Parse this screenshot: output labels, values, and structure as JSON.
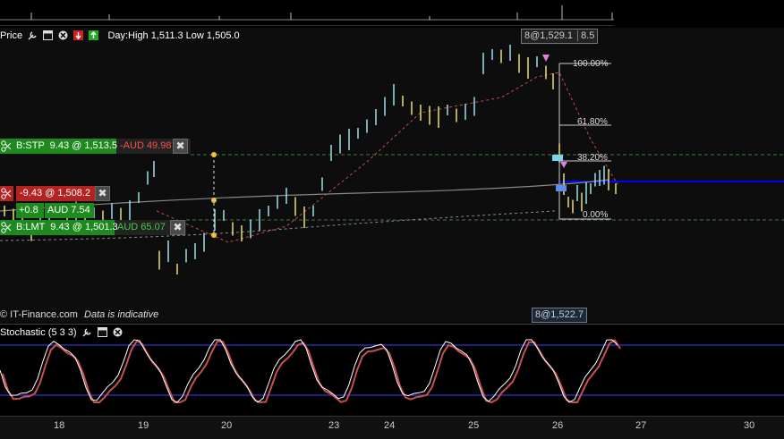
{
  "main": {
    "price_label": "Price",
    "day_info": "Day:High 1,511.3 Low 1,505.0",
    "watermark": "© IT-Finance.com",
    "indicative": "Data is indicative",
    "top_tag": "8@1,529.1",
    "top_tag_value": "8.5",
    "bottom_tag": "8@1,522.7"
  },
  "orders": {
    "stop": {
      "label": "B:STP",
      "qty_price": "9.43 @ 1,513.5",
      "pl": "-AUD 49.98"
    },
    "position": {
      "qty_price": "-9.43 @ 1,508.2",
      "points": "+0.8",
      "aud": "AUD 7.54"
    },
    "limit": {
      "label": "B:LMT",
      "qty_price": "9.43 @ 1,501.3",
      "pl": "AUD 65.07"
    }
  },
  "fibonacci": [
    "100.00%",
    "61.80%",
    "38.20%",
    "0.00%"
  ],
  "stochastic": {
    "label": "Stochastic (5 3 3)"
  },
  "x_axis": [
    "18",
    "19",
    "20",
    "23",
    "24",
    "25",
    "26",
    "27",
    "30"
  ],
  "colors": {
    "green": "#1e8a1e",
    "red": "#b52222",
    "blue_line": "#0000ff",
    "candle_up": "#9be0e8",
    "candle_down": "#e8e070",
    "stoch_k": "#ffffff",
    "stoch_d": "#c85050",
    "stoch_band": "#4040ff"
  },
  "icons": {
    "wrench": "wrench-icon",
    "window": "window-icon",
    "close": "close-icon",
    "sell": "sell-icon",
    "buy": "buy-icon",
    "order": "order-icon"
  }
}
